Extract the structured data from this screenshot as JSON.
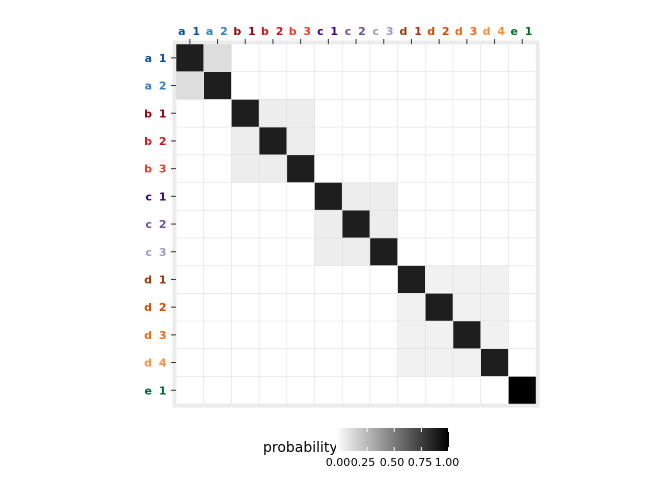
{
  "chart_data": {
    "type": "heatmap",
    "x_categories": [
      "a 1",
      "a 2",
      "b 1",
      "b 2",
      "b 3",
      "c 1",
      "c 2",
      "c 3",
      "d 1",
      "d 2",
      "d 3",
      "d 4",
      "e 1"
    ],
    "y_categories": [
      "a 1",
      "a 2",
      "b 1",
      "b 2",
      "b 3",
      "c 1",
      "c 2",
      "c 3",
      "d 1",
      "d 2",
      "d 3",
      "d 4",
      "e 1"
    ],
    "label_colors": {
      "a": [
        "#08519c",
        "#3182bd"
      ],
      "b": [
        "#99000d",
        "#cb181d",
        "#ef3b2c"
      ],
      "c": [
        "#3f007d",
        "#6a51a3",
        "#9e9ac8"
      ],
      "d": [
        "#a63603",
        "#d94801",
        "#f16913",
        "#fd8d3c"
      ],
      "e": [
        "#006d2c"
      ]
    },
    "blocks": [
      {
        "group": "a",
        "members": [
          "a 1",
          "a 2"
        ],
        "diagonal": 0.85,
        "off_diagonal": 0.15
      },
      {
        "group": "b",
        "members": [
          "b 1",
          "b 2",
          "b 3"
        ],
        "diagonal": 0.85,
        "off_diagonal": 0.08
      },
      {
        "group": "c",
        "members": [
          "c 1",
          "c 2",
          "c 3"
        ],
        "diagonal": 0.85,
        "off_diagonal": 0.08
      },
      {
        "group": "d",
        "members": [
          "d 1",
          "d 2",
          "d 3",
          "d 4"
        ],
        "diagonal": 0.85,
        "off_diagonal": 0.06
      },
      {
        "group": "e",
        "members": [
          "e 1"
        ],
        "diagonal": 1.0,
        "off_diagonal": 0
      }
    ],
    "outside_blocks": 0,
    "legend": {
      "title": "probability",
      "position": "bottom",
      "ticks": [
        "0.00",
        "0.25",
        "0.50",
        "0.75",
        "1.00"
      ],
      "tick_values": [
        0,
        0.25,
        0.5,
        0.75,
        1.0
      ],
      "low_color": "#ffffff",
      "high_color": "#000000"
    },
    "x_axis_position": "top",
    "grid": true
  }
}
